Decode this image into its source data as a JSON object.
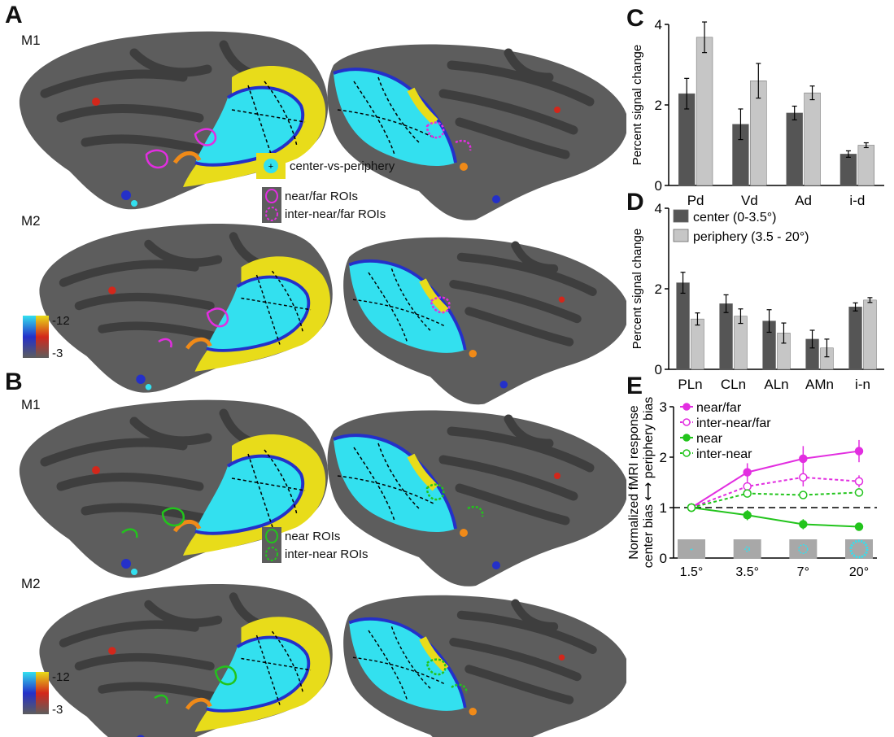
{
  "panels": {
    "A": {
      "letter": "A",
      "m1": "M1",
      "m2": "M2",
      "legend_center": "center-vs-periphery",
      "legend_roi1": "near/far ROIs",
      "legend_roi2": "inter-near/far ROIs",
      "colorbar_max": "-12",
      "colorbar_min": "-3"
    },
    "B": {
      "letter": "B",
      "m1": "M1",
      "m2": "M2",
      "legend_roi1": "near ROIs",
      "legend_roi2": "inter-near ROIs",
      "colorbar_max": "-12",
      "colorbar_min": "-3"
    },
    "C": {
      "letter": "C"
    },
    "D": {
      "letter": "D"
    },
    "E": {
      "letter": "E"
    }
  },
  "colors": {
    "cortex": "#5d5d5d",
    "sulcus": "#3e3e3e",
    "cyan": "#33e0ef",
    "yellow": "#e8dc1a",
    "orange": "#f08a18",
    "red": "#d3271b",
    "blue": "#2430c9",
    "magenta": "#e22ee0",
    "green": "#22c41c",
    "dark_bar": "#555555",
    "light_bar": "#c6c6c6"
  },
  "chart_data": [
    {
      "type": "bar",
      "panel": "C",
      "ylabel": "Percent signal change",
      "ylim": [
        0,
        4
      ],
      "yticks": [
        "0",
        "2",
        "4"
      ],
      "categories": [
        "Pd",
        "Vd",
        "Ad",
        "i-d"
      ],
      "series": [
        {
          "values": [
            2.28,
            1.52,
            1.8,
            0.78
          ],
          "err": [
            0.38,
            0.38,
            0.17,
            0.08
          ]
        },
        {
          "values": [
            3.68,
            2.6,
            2.3,
            1.0
          ],
          "err": [
            0.38,
            0.43,
            0.17,
            0.06
          ]
        }
      ]
    },
    {
      "type": "bar",
      "panel": "D",
      "ylabel": "Percent signal change",
      "ylim": [
        0,
        4
      ],
      "yticks": [
        "0",
        "2",
        "4"
      ],
      "categories": [
        "PLn",
        "CLn",
        "ALn",
        "AMn",
        "i-n"
      ],
      "series": [
        {
          "name": "center (0-3.5°)",
          "values": [
            2.15,
            1.63,
            1.2,
            0.75,
            1.55
          ],
          "err": [
            0.26,
            0.22,
            0.28,
            0.22,
            0.1
          ]
        },
        {
          "name": "periphery (3.5 - 20°)",
          "values": [
            1.25,
            1.32,
            0.9,
            0.53,
            1.72
          ],
          "err": [
            0.15,
            0.18,
            0.25,
            0.22,
            0.06
          ]
        }
      ],
      "legend": "top"
    },
    {
      "type": "line",
      "panel": "E",
      "ylabel_top": "Normalized fMRI response",
      "ylabel_bottom": "center bias ⟷ periphery bias",
      "ylim": [
        0,
        3
      ],
      "yticks": [
        "0",
        "1",
        "2",
        "3"
      ],
      "x": [
        "1.5°",
        "3.5°",
        "7°",
        "20°"
      ],
      "series": [
        {
          "name": "near/far",
          "values": [
            1.0,
            1.7,
            1.97,
            2.12
          ],
          "err": [
            0,
            0.18,
            0.25,
            0.22
          ]
        },
        {
          "name": "inter-near/far",
          "values": [
            1.0,
            1.42,
            1.6,
            1.52
          ],
          "err": [
            0,
            0.1,
            0.18,
            0.12
          ]
        },
        {
          "name": "near",
          "values": [
            1.0,
            0.85,
            0.67,
            0.62
          ],
          "err": [
            0,
            0.1,
            0.1,
            0.08
          ]
        },
        {
          "name": "inter-near",
          "values": [
            1.0,
            1.28,
            1.25,
            1.3
          ],
          "err": [
            0,
            0.06,
            0.05,
            0.08
          ]
        }
      ],
      "reference_line": 1.0
    }
  ]
}
